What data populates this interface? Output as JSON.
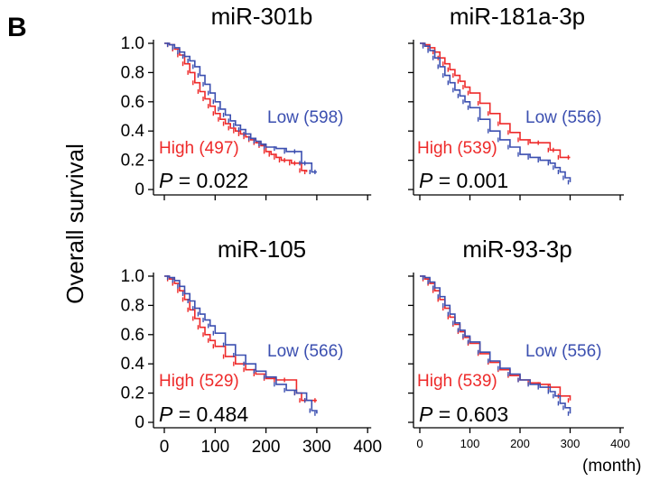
{
  "panel_letter": "B",
  "y_axis_label": "Overall survival",
  "x_unit_label": "(month)",
  "colors": {
    "high": "#ee2a2a",
    "low": "#3b4fb0",
    "axis": "#000000"
  },
  "chart_data": [
    {
      "type": "line",
      "title": "miR-301b",
      "xlabel": "",
      "ylabel": "Overall survival",
      "xlim": [
        0,
        400
      ],
      "ylim": [
        0,
        1.0
      ],
      "x_ticks": [
        "0",
        "100",
        "200",
        "300",
        "400"
      ],
      "y_ticks": [
        "0",
        "0.2",
        "0.4",
        "0.6",
        "0.8",
        "1.0"
      ],
      "p_prefix": "P",
      "p_text": " = 0.022",
      "series": [
        {
          "name": "High (497)",
          "group": "high",
          "x": [
            0,
            10,
            20,
            30,
            40,
            50,
            60,
            70,
            80,
            90,
            100,
            110,
            120,
            130,
            140,
            150,
            160,
            170,
            180,
            190,
            200,
            210,
            220,
            230,
            240,
            250,
            260,
            270,
            280
          ],
          "y": [
            1.0,
            0.99,
            0.96,
            0.92,
            0.86,
            0.8,
            0.73,
            0.67,
            0.62,
            0.57,
            0.52,
            0.48,
            0.45,
            0.42,
            0.4,
            0.38,
            0.36,
            0.34,
            0.32,
            0.3,
            0.26,
            0.24,
            0.22,
            0.2,
            0.2,
            0.18,
            0.18,
            0.13,
            0.12
          ]
        },
        {
          "name": "Low (598)",
          "group": "low",
          "x": [
            0,
            10,
            20,
            30,
            40,
            50,
            60,
            70,
            80,
            90,
            100,
            110,
            120,
            130,
            140,
            150,
            160,
            170,
            180,
            190,
            200,
            220,
            240,
            260,
            270,
            280,
            290,
            300
          ],
          "y": [
            1.0,
            0.99,
            0.97,
            0.94,
            0.91,
            0.88,
            0.84,
            0.78,
            0.72,
            0.66,
            0.6,
            0.55,
            0.51,
            0.47,
            0.44,
            0.41,
            0.38,
            0.35,
            0.33,
            0.31,
            0.29,
            0.28,
            0.26,
            0.26,
            0.18,
            0.18,
            0.12,
            0.12
          ]
        }
      ]
    },
    {
      "type": "line",
      "title": "miR-181a-3p",
      "xlabel": "",
      "ylabel": "Overall survival",
      "xlim": [
        0,
        400
      ],
      "ylim": [
        0,
        1.0
      ],
      "x_ticks": [
        "",
        "",
        "",
        "",
        ""
      ],
      "y_ticks": [
        "",
        "",
        "",
        "",
        "",
        ""
      ],
      "p_prefix": "P",
      "p_text": " = 0.001",
      "series": [
        {
          "name": "High (539)",
          "group": "high",
          "x": [
            0,
            10,
            20,
            30,
            40,
            50,
            60,
            70,
            80,
            90,
            100,
            120,
            140,
            160,
            180,
            200,
            220,
            240,
            260,
            270,
            280,
            300
          ],
          "y": [
            1.0,
            0.99,
            0.97,
            0.94,
            0.9,
            0.86,
            0.82,
            0.78,
            0.74,
            0.7,
            0.66,
            0.59,
            0.52,
            0.45,
            0.39,
            0.34,
            0.32,
            0.32,
            0.27,
            0.27,
            0.22,
            0.22
          ]
        },
        {
          "name": "Low (556)",
          "group": "low",
          "x": [
            0,
            10,
            20,
            30,
            40,
            50,
            60,
            70,
            80,
            90,
            100,
            120,
            140,
            160,
            180,
            200,
            220,
            240,
            260,
            270,
            280,
            290,
            300
          ],
          "y": [
            1.0,
            0.98,
            0.95,
            0.9,
            0.84,
            0.78,
            0.73,
            0.68,
            0.64,
            0.6,
            0.56,
            0.48,
            0.4,
            0.34,
            0.29,
            0.24,
            0.22,
            0.2,
            0.18,
            0.15,
            0.12,
            0.08,
            0.05
          ]
        }
      ]
    },
    {
      "type": "line",
      "title": "miR-105",
      "xlabel": "",
      "ylabel": "Overall survival",
      "xlim": [
        0,
        400
      ],
      "ylim": [
        0,
        1.0
      ],
      "x_ticks": [
        "0",
        "100",
        "200",
        "300",
        "400"
      ],
      "y_ticks": [
        "0",
        "0.2",
        "0.4",
        "0.6",
        "0.8",
        "1.0"
      ],
      "p_prefix": "P",
      "p_text": " = 0.484",
      "series": [
        {
          "name": "High (529)",
          "group": "high",
          "x": [
            0,
            10,
            20,
            30,
            40,
            50,
            60,
            70,
            80,
            90,
            100,
            120,
            140,
            160,
            180,
            200,
            220,
            240,
            260,
            270,
            280,
            300
          ],
          "y": [
            1.0,
            0.98,
            0.95,
            0.9,
            0.84,
            0.77,
            0.71,
            0.65,
            0.6,
            0.56,
            0.52,
            0.45,
            0.4,
            0.36,
            0.33,
            0.3,
            0.29,
            0.29,
            0.2,
            0.15,
            0.15,
            0.15
          ]
        },
        {
          "name": "Low (566)",
          "group": "low",
          "x": [
            0,
            10,
            20,
            30,
            40,
            50,
            60,
            70,
            80,
            90,
            100,
            120,
            140,
            160,
            180,
            200,
            220,
            240,
            260,
            280,
            290,
            300
          ],
          "y": [
            1.0,
            0.99,
            0.97,
            0.93,
            0.88,
            0.83,
            0.78,
            0.74,
            0.7,
            0.66,
            0.61,
            0.53,
            0.46,
            0.4,
            0.35,
            0.31,
            0.26,
            0.22,
            0.2,
            0.15,
            0.08,
            0.06
          ]
        }
      ]
    },
    {
      "type": "line",
      "title": "miR-93-3p",
      "xlabel": "",
      "ylabel": "Overall survival",
      "xlim": [
        0,
        400
      ],
      "ylim": [
        0,
        1.0
      ],
      "x_ticks": [
        "0",
        "100",
        "200",
        "300",
        "400"
      ],
      "y_ticks": [
        "",
        "",
        "",
        "",
        "",
        ""
      ],
      "p_prefix": "P",
      "p_text": " = 0.603",
      "series": [
        {
          "name": "High (539)",
          "group": "high",
          "x": [
            0,
            10,
            20,
            30,
            40,
            50,
            60,
            70,
            80,
            90,
            100,
            120,
            140,
            160,
            180,
            200,
            220,
            240,
            260,
            280,
            300
          ],
          "y": [
            1.0,
            0.98,
            0.95,
            0.9,
            0.84,
            0.78,
            0.72,
            0.67,
            0.62,
            0.58,
            0.54,
            0.47,
            0.41,
            0.36,
            0.32,
            0.29,
            0.27,
            0.26,
            0.24,
            0.18,
            0.15
          ]
        },
        {
          "name": "Low (556)",
          "group": "low",
          "x": [
            0,
            10,
            20,
            30,
            40,
            50,
            60,
            70,
            80,
            90,
            100,
            120,
            140,
            160,
            180,
            200,
            220,
            240,
            260,
            270,
            280,
            290,
            300
          ],
          "y": [
            1.0,
            0.99,
            0.96,
            0.92,
            0.86,
            0.8,
            0.74,
            0.68,
            0.63,
            0.59,
            0.55,
            0.48,
            0.42,
            0.37,
            0.33,
            0.29,
            0.26,
            0.24,
            0.21,
            0.18,
            0.13,
            0.1,
            0.06
          ]
        }
      ]
    }
  ]
}
